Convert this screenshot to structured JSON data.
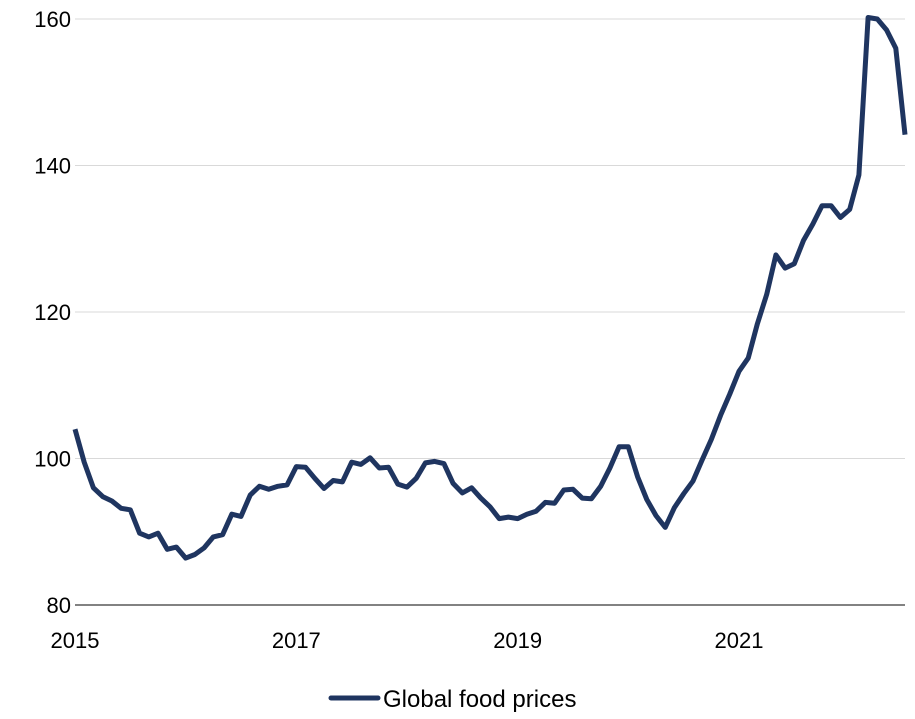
{
  "chart_data": {
    "type": "line",
    "title": "",
    "xlabel": "",
    "ylabel": "",
    "xlim": [
      "2015-01",
      "2022-07"
    ],
    "ylim": [
      80,
      160
    ],
    "y_ticks": [
      80,
      100,
      120,
      140,
      160
    ],
    "x_ticks": [
      "2015",
      "2017",
      "2019",
      "2021"
    ],
    "x_tick_dates": [
      "2015-01",
      "2017-01",
      "2019-01",
      "2021-01"
    ],
    "grid": "horizontal",
    "legend": "bottom",
    "series_color": "#1f3560",
    "grid_color": "#d9d9d9",
    "axis_color": "#595959",
    "series": [
      {
        "name": "Global food prices",
        "x": [
          "2015-01",
          "2015-02",
          "2015-03",
          "2015-04",
          "2015-05",
          "2015-06",
          "2015-07",
          "2015-08",
          "2015-09",
          "2015-10",
          "2015-11",
          "2015-12",
          "2016-01",
          "2016-02",
          "2016-03",
          "2016-04",
          "2016-05",
          "2016-06",
          "2016-07",
          "2016-08",
          "2016-09",
          "2016-10",
          "2016-11",
          "2016-12",
          "2017-01",
          "2017-02",
          "2017-03",
          "2017-04",
          "2017-05",
          "2017-06",
          "2017-07",
          "2017-08",
          "2017-09",
          "2017-10",
          "2017-11",
          "2017-12",
          "2018-01",
          "2018-02",
          "2018-03",
          "2018-04",
          "2018-05",
          "2018-06",
          "2018-07",
          "2018-08",
          "2018-09",
          "2018-10",
          "2018-11",
          "2018-12",
          "2019-01",
          "2019-02",
          "2019-03",
          "2019-04",
          "2019-05",
          "2019-06",
          "2019-07",
          "2019-08",
          "2019-09",
          "2019-10",
          "2019-11",
          "2019-12",
          "2020-01",
          "2020-02",
          "2020-03",
          "2020-04",
          "2020-05",
          "2020-06",
          "2020-07",
          "2020-08",
          "2020-09",
          "2020-10",
          "2020-11",
          "2020-12",
          "2021-01",
          "2021-02",
          "2021-03",
          "2021-04",
          "2021-05",
          "2021-06",
          "2021-07",
          "2021-08",
          "2021-09",
          "2021-10",
          "2021-11",
          "2021-12",
          "2022-01",
          "2022-02",
          "2022-03",
          "2022-04",
          "2022-05",
          "2022-06",
          "2022-07"
        ],
        "values": [
          104.0,
          99.5,
          96.0,
          94.8,
          94.2,
          93.2,
          93.0,
          89.8,
          89.3,
          89.8,
          87.6,
          87.9,
          86.4,
          86.9,
          87.8,
          89.3,
          89.6,
          92.4,
          92.1,
          95.0,
          96.2,
          95.8,
          96.2,
          96.4,
          98.9,
          98.8,
          97.3,
          95.9,
          97.0,
          96.8,
          99.5,
          99.2,
          100.1,
          98.7,
          98.8,
          96.5,
          96.1,
          97.3,
          99.4,
          99.6,
          99.3,
          96.6,
          95.3,
          96.0,
          94.6,
          93.4,
          91.8,
          92.0,
          91.8,
          92.4,
          92.8,
          94.0,
          93.9,
          95.7,
          95.8,
          94.6,
          94.5,
          96.2,
          98.7,
          101.6,
          101.6,
          97.5,
          94.4,
          92.2,
          90.6,
          93.3,
          95.2,
          96.9,
          99.8,
          102.6,
          105.9,
          108.8,
          111.9,
          113.7,
          118.4,
          122.4,
          127.8,
          126.0,
          126.6,
          129.8,
          132.0,
          134.5,
          134.5,
          132.9,
          134.0,
          138.7,
          160.2,
          160.0,
          158.5,
          156.0,
          144.2
        ]
      }
    ]
  }
}
